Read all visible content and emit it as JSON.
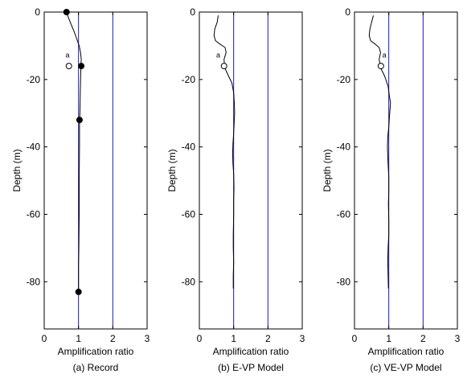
{
  "chart_data": [
    {
      "type": "line",
      "caption": "(a) Record",
      "xlabel": "Amplification ratio",
      "ylabel": "Depth (m)",
      "xlim": [
        0,
        3
      ],
      "ylim": [
        -94,
        0
      ],
      "xticks": [
        0,
        1,
        2,
        3
      ],
      "yticks": [
        0,
        -20,
        -40,
        -60,
        -80
      ],
      "reference_lines_x": [
        1,
        2
      ],
      "series": [
        {
          "style": "line",
          "x": [
            0.65,
            0.72,
            0.8,
            0.88,
            0.95,
            1.02,
            1.06,
            1.08,
            1.07,
            1.06,
            1.05,
            1.04,
            1.03,
            1.03,
            1.02,
            1.02,
            1.01,
            1.0,
            1.0,
            1.0
          ],
          "y": [
            0,
            -2,
            -4,
            -6,
            -8,
            -10,
            -12,
            -14,
            -16,
            -20,
            -25,
            -30,
            -32,
            -40,
            -50,
            -60,
            -70,
            -75,
            -80,
            -83
          ]
        },
        {
          "style": "filled-marker",
          "x": [
            0.65,
            1.08,
            1.03,
            1.0
          ],
          "y": [
            0,
            -16,
            -32,
            -83
          ]
        },
        {
          "style": "open-marker",
          "x": [
            0.72
          ],
          "y": [
            -16
          ]
        }
      ],
      "annotations": [
        {
          "text": "a",
          "x": 0.68,
          "y": -13.5
        }
      ]
    },
    {
      "type": "line",
      "caption": "(b) E-VP Model",
      "xlabel": "Amplification ratio",
      "ylabel": "Depth (m)",
      "xlim": [
        0,
        3
      ],
      "ylim": [
        -94,
        0
      ],
      "xticks": [
        0,
        1,
        2,
        3
      ],
      "yticks": [
        0,
        -20,
        -40,
        -60,
        -80
      ],
      "reference_lines_x": [
        1,
        2
      ],
      "series": [
        {
          "style": "line",
          "x": [
            0.55,
            0.52,
            0.45,
            0.43,
            0.47,
            0.6,
            0.75,
            0.78,
            0.72,
            0.74,
            0.85,
            0.95,
            1.0,
            1.02,
            1.03,
            1.02,
            1.0,
            0.98,
            0.97,
            0.98,
            1.0,
            1.01,
            1.0,
            1.0,
            0.99,
            0.99,
            1.0,
            0.99,
            0.99
          ],
          "y": [
            -1,
            -3,
            -5,
            -7,
            -8.5,
            -9.5,
            -10.5,
            -12,
            -14,
            -16.5,
            -19,
            -21,
            -24,
            -27,
            -30,
            -32,
            -36,
            -39,
            -42,
            -45,
            -48,
            -52,
            -56,
            -60,
            -66,
            -70,
            -74,
            -78,
            -82
          ]
        },
        {
          "style": "open-marker",
          "x": [
            0.72
          ],
          "y": [
            -16
          ]
        }
      ],
      "annotations": [
        {
          "text": "a",
          "x": 0.55,
          "y": -13.5
        }
      ]
    },
    {
      "type": "line",
      "caption": "(c) VE-VP Model",
      "xlabel": "Amplification ratio",
      "ylabel": "Depth (m)",
      "xlim": [
        0,
        3
      ],
      "ylim": [
        -94,
        0
      ],
      "xticks": [
        0,
        1,
        2,
        3
      ],
      "yticks": [
        0,
        -20,
        -40,
        -60,
        -80
      ],
      "reference_lines_x": [
        1,
        2
      ],
      "series": [
        {
          "style": "line",
          "x": [
            0.55,
            0.5,
            0.45,
            0.43,
            0.47,
            0.6,
            0.72,
            0.76,
            0.72,
            0.76,
            0.88,
            0.98,
            1.02,
            1.05,
            1.02,
            1.0,
            0.97,
            0.96,
            0.98,
            1.0,
            1.0,
            0.99,
            1.0,
            1.0,
            0.98,
            0.97,
            0.98,
            0.99
          ],
          "y": [
            -1,
            -3,
            -5,
            -7,
            -8.5,
            -9.5,
            -10.5,
            -12,
            -14,
            -16.5,
            -19,
            -22,
            -25,
            -27,
            -31,
            -34,
            -37,
            -40,
            -45,
            -49,
            -53,
            -57,
            -62,
            -66,
            -70,
            -74,
            -78,
            -82
          ]
        },
        {
          "style": "open-marker",
          "x": [
            0.77
          ],
          "y": [
            -16
          ]
        }
      ],
      "annotations": [
        {
          "text": "a",
          "x": 0.87,
          "y": -13.5
        }
      ]
    }
  ]
}
